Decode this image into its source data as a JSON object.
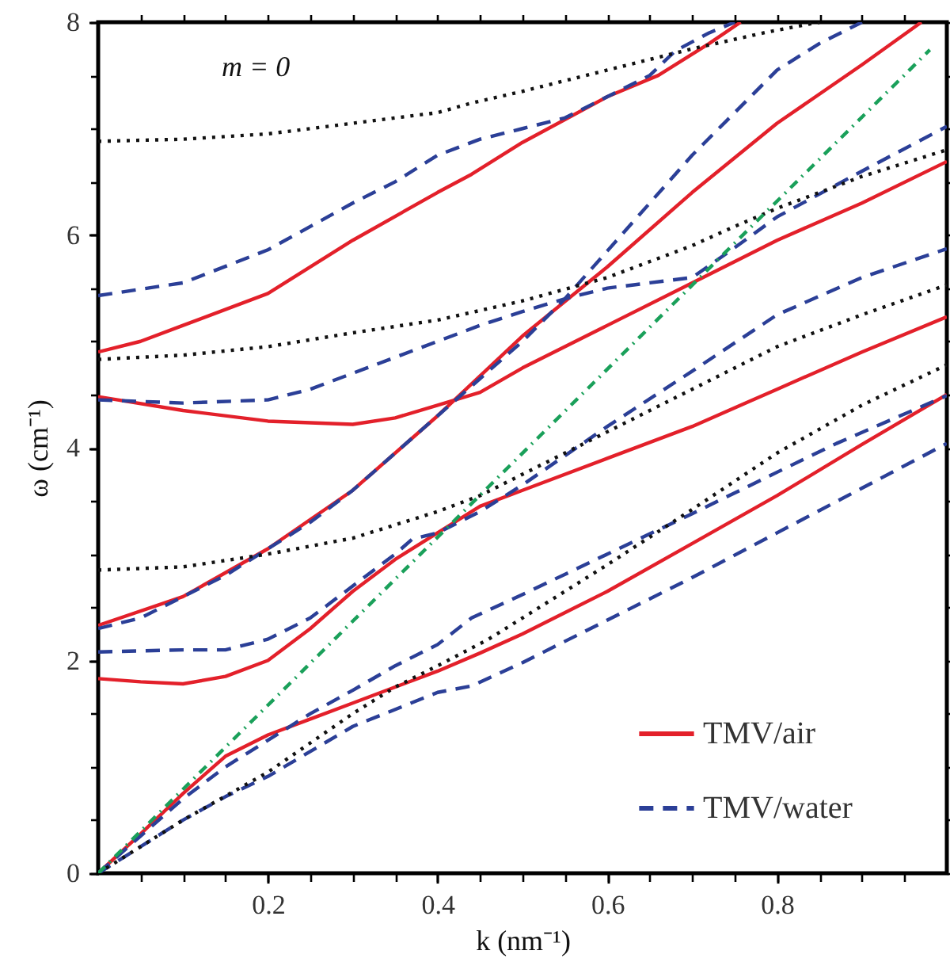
{
  "chart_data": {
    "type": "line",
    "xlabel": "k (nm⁻¹)",
    "ylabel": "ω (cm⁻¹)",
    "annotations": [
      "m = 0"
    ],
    "xlim": [
      0,
      1.0
    ],
    "ylim": [
      0,
      8
    ],
    "xticks": [
      {
        "value": 0.05,
        "label": null
      },
      {
        "value": 0.1,
        "label": null
      },
      {
        "value": 0.15,
        "label": null
      },
      0.2,
      {
        "value": 0.25,
        "label": null
      },
      {
        "value": 0.3,
        "label": null
      },
      {
        "value": 0.35,
        "label": null
      },
      0.4,
      {
        "value": 0.45,
        "label": null
      },
      {
        "value": 0.5,
        "label": null
      },
      {
        "value": 0.55,
        "label": null
      },
      0.6,
      {
        "value": 0.65,
        "label": null
      },
      {
        "value": 0.7,
        "label": null
      },
      {
        "value": 0.75,
        "label": null
      },
      0.8,
      {
        "value": 0.85,
        "label": null
      },
      {
        "value": 0.9,
        "label": null
      },
      {
        "value": 0.95,
        "label": null
      }
    ],
    "yticks": [
      0,
      {
        "value": 0.5,
        "label": null
      },
      {
        "value": 1,
        "label": null
      },
      {
        "value": 1.5,
        "label": null
      },
      2,
      {
        "value": 2.5,
        "label": null
      },
      {
        "value": 3,
        "label": null
      },
      {
        "value": 3.5,
        "label": null
      },
      4,
      {
        "value": 4.5,
        "label": null
      },
      {
        "value": 5,
        "label": null
      },
      {
        "value": 5.5,
        "label": null
      },
      6,
      {
        "value": 6.5,
        "label": null
      },
      {
        "value": 7,
        "label": null
      },
      {
        "value": 7.5,
        "label": null
      },
      8
    ],
    "grid": false,
    "legend": "bottom right",
    "series": [
      {
        "name": "TMV/air",
        "color": "#e3202a",
        "line_style": "solid",
        "x": [
          0,
          0.05,
          0.1,
          0.15,
          0.2,
          0.25,
          0.3,
          0.35,
          0.4,
          0.45,
          0.5,
          0.6,
          0.7,
          0.8,
          0.9,
          1.0
        ],
        "values": [
          0,
          0.37,
          0.75,
          1.1,
          1.3,
          1.45,
          1.6,
          1.75,
          1.9,
          2.07,
          2.25,
          2.65,
          3.1,
          3.55,
          4.03,
          4.5
        ]
      },
      {
        "color": "#e3202a",
        "line_style": "solid",
        "x": [
          0,
          0.05,
          0.1,
          0.15,
          0.2,
          0.25,
          0.3,
          0.35,
          0.4,
          0.45,
          0.5,
          0.6,
          0.7,
          0.8,
          0.9,
          1.0
        ],
        "values": [
          1.83,
          1.8,
          1.78,
          1.85,
          2.0,
          2.3,
          2.65,
          2.95,
          3.2,
          3.45,
          3.6,
          3.9,
          4.2,
          4.55,
          4.9,
          5.23
        ]
      },
      {
        "color": "#e3202a",
        "line_style": "solid",
        "x": [
          0,
          0.1,
          0.2,
          0.3,
          0.4,
          0.5,
          0.6,
          0.7,
          0.8,
          0.9,
          0.97
        ],
        "values": [
          2.33,
          2.6,
          3.05,
          3.6,
          4.3,
          5.05,
          5.7,
          6.4,
          7.05,
          7.6,
          8.0
        ]
      },
      {
        "color": "#e3202a",
        "line_style": "solid",
        "x": [
          0,
          0.1,
          0.2,
          0.3,
          0.35,
          0.4,
          0.45,
          0.5,
          0.6,
          0.7,
          0.8,
          0.9,
          1.0
        ],
        "values": [
          4.48,
          4.35,
          4.25,
          4.22,
          4.28,
          4.4,
          4.52,
          4.75,
          5.15,
          5.55,
          5.95,
          6.3,
          6.69
        ]
      },
      {
        "color": "#e3202a",
        "line_style": "solid",
        "x": [
          0,
          0.05,
          0.1,
          0.2,
          0.3,
          0.4,
          0.44,
          0.5,
          0.6,
          0.66,
          0.72,
          0.757
        ],
        "values": [
          4.9,
          5.0,
          5.15,
          5.45,
          5.95,
          6.4,
          6.57,
          6.87,
          7.3,
          7.5,
          7.8,
          8.0
        ]
      },
      {
        "name": "TMV/water",
        "color": "#2b3f97",
        "line_style": "dashed",
        "x": [
          0,
          0.05,
          0.1,
          0.15,
          0.2,
          0.3,
          0.4,
          0.44,
          0.5,
          0.6,
          0.7,
          0.8,
          0.9,
          1.0
        ],
        "values": [
          0,
          0.25,
          0.5,
          0.72,
          0.91,
          1.38,
          1.7,
          1.76,
          1.98,
          2.38,
          2.78,
          3.2,
          3.62,
          4.04
        ]
      },
      {
        "color": "#2b3f97",
        "line_style": "dashed",
        "x": [
          0,
          0.05,
          0.1,
          0.15,
          0.2,
          0.25,
          0.3,
          0.35,
          0.4,
          0.44,
          0.5,
          0.6,
          0.7,
          0.8,
          0.87,
          1.0
        ],
        "values": [
          0,
          0.35,
          0.7,
          1.0,
          1.25,
          1.5,
          1.72,
          1.95,
          2.15,
          2.4,
          2.62,
          3.0,
          3.38,
          3.77,
          4.04,
          4.49
        ]
      },
      {
        "color": "#2b3f97",
        "line_style": "dashed",
        "x": [
          0,
          0.1,
          0.15,
          0.2,
          0.25,
          0.3,
          0.35,
          0.37,
          0.4,
          0.45,
          0.5,
          0.6,
          0.7,
          0.8,
          0.9,
          1.0
        ],
        "values": [
          2.08,
          2.1,
          2.1,
          2.2,
          2.4,
          2.7,
          3.0,
          3.14,
          3.2,
          3.4,
          3.65,
          4.2,
          4.72,
          5.25,
          5.6,
          5.87
        ]
      },
      {
        "color": "#2b3f97",
        "line_style": "dashed",
        "x": [
          0,
          0.05,
          0.1,
          0.15,
          0.2,
          0.25,
          0.3,
          0.35,
          0.4,
          0.45,
          0.5,
          0.55,
          0.6,
          0.65,
          0.7,
          0.75,
          0.8,
          0.85,
          0.9
        ],
        "values": [
          2.3,
          2.4,
          2.6,
          2.8,
          3.05,
          3.3,
          3.6,
          3.95,
          4.3,
          4.65,
          5.0,
          5.4,
          5.85,
          6.3,
          6.75,
          7.15,
          7.55,
          7.8,
          8.0
        ]
      },
      {
        "color": "#2b3f97",
        "line_style": "dashed",
        "x": [
          0,
          0.1,
          0.2,
          0.25,
          0.3,
          0.35,
          0.4,
          0.45,
          0.5,
          0.55,
          0.6,
          0.65,
          0.7,
          0.75,
          0.8,
          0.9,
          1.0
        ],
        "values": [
          4.45,
          4.42,
          4.45,
          4.55,
          4.7,
          4.85,
          5.0,
          5.15,
          5.28,
          5.4,
          5.5,
          5.55,
          5.6,
          5.88,
          6.17,
          6.6,
          7.02
        ]
      },
      {
        "color": "#2b3f97",
        "line_style": "dashed",
        "x": [
          0,
          0.1,
          0.2,
          0.3,
          0.35,
          0.4,
          0.45,
          0.5,
          0.55,
          0.6,
          0.65,
          0.68,
          0.72,
          0.75
        ],
        "values": [
          5.43,
          5.55,
          5.86,
          6.3,
          6.5,
          6.75,
          6.9,
          7.0,
          7.1,
          7.3,
          7.5,
          7.73,
          7.9,
          8.0
        ]
      },
      {
        "color": "#111111",
        "line_style": "dotted",
        "x": [
          0,
          0.1,
          0.2,
          0.3,
          0.35,
          0.4,
          0.46,
          0.5,
          0.6,
          0.7,
          0.8,
          0.9,
          1.0
        ],
        "values": [
          0,
          0.5,
          0.95,
          1.5,
          1.75,
          1.95,
          2.2,
          2.4,
          2.9,
          3.42,
          3.95,
          4.4,
          4.78
        ]
      },
      {
        "color": "#111111",
        "line_style": "dotted",
        "x": [
          0,
          0.1,
          0.2,
          0.3,
          0.4,
          0.45,
          0.5,
          0.6,
          0.7,
          0.8,
          0.9,
          1.0
        ],
        "values": [
          2.85,
          2.88,
          3.0,
          3.15,
          3.4,
          3.55,
          3.75,
          4.15,
          4.55,
          4.95,
          5.25,
          5.53
        ]
      },
      {
        "color": "#111111",
        "line_style": "dotted",
        "x": [
          0,
          0.1,
          0.2,
          0.3,
          0.4,
          0.5,
          0.6,
          0.7,
          0.75,
          0.8,
          0.9,
          1.0
        ],
        "values": [
          4.83,
          4.87,
          4.95,
          5.08,
          5.2,
          5.38,
          5.6,
          5.9,
          6.08,
          6.25,
          6.55,
          6.8
        ]
      },
      {
        "color": "#111111",
        "line_style": "dotted",
        "x": [
          0,
          0.1,
          0.2,
          0.3,
          0.4,
          0.44,
          0.5,
          0.6,
          0.7,
          0.79,
          0.85
        ],
        "values": [
          6.88,
          6.9,
          6.95,
          7.05,
          7.15,
          7.24,
          7.35,
          7.55,
          7.75,
          7.91,
          8.0
        ]
      },
      {
        "color": "#1aa05a",
        "line_style": "dashdot",
        "x": [
          0,
          0.98
        ],
        "values": [
          0,
          7.74
        ]
      }
    ]
  }
}
